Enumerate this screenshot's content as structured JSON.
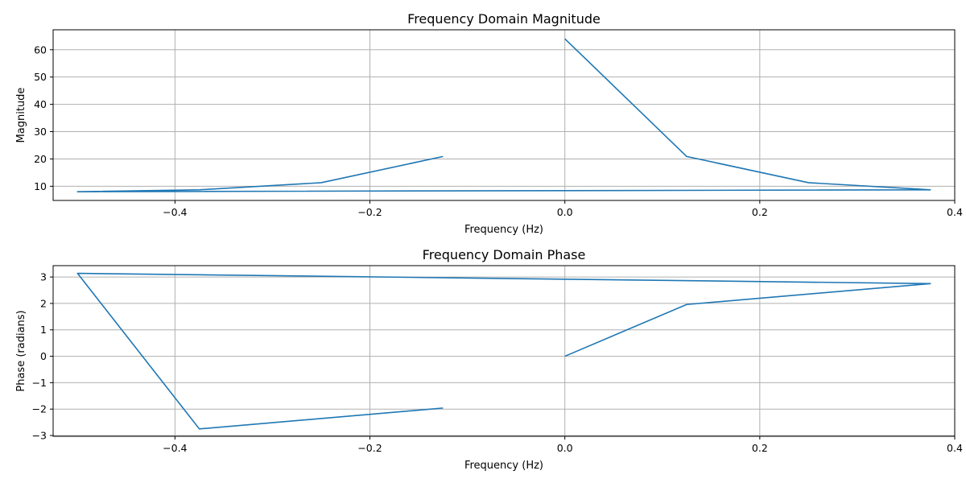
{
  "chart_data": [
    {
      "type": "line",
      "title": "Frequency Domain Magnitude",
      "xlabel": "Frequency (Hz)",
      "ylabel": "Magnitude",
      "xlim": [
        -0.525,
        0.4
      ],
      "ylim": [
        4.8,
        67.3
      ],
      "xticks": [
        -0.4,
        -0.2,
        0.0,
        0.2,
        0.4
      ],
      "xtick_labels": [
        "−0.4",
        "−0.2",
        "0.0",
        "0.2",
        "0.4"
      ],
      "yticks": [
        10,
        20,
        30,
        40,
        50,
        60
      ],
      "ytick_labels": [
        "10",
        "20",
        "30",
        "40",
        "50",
        "60"
      ],
      "grid": true,
      "series": [
        {
          "color": "#1f77b4",
          "x": [
            0.0,
            0.125,
            0.25,
            0.375,
            -0.5,
            -0.375,
            -0.25,
            -0.125
          ],
          "y": [
            64.0,
            20.9,
            11.3,
            8.7,
            8.0,
            8.7,
            11.3,
            20.9
          ]
        }
      ]
    },
    {
      "type": "line",
      "title": "Frequency Domain Phase",
      "xlabel": "Frequency (Hz)",
      "ylabel": "Phase (radians)",
      "xlim": [
        -0.525,
        0.4
      ],
      "ylim": [
        -3.03,
        3.43
      ],
      "xticks": [
        -0.4,
        -0.2,
        0.0,
        0.2,
        0.4
      ],
      "xtick_labels": [
        "−0.4",
        "−0.2",
        "0.0",
        "0.2",
        "0.4"
      ],
      "yticks": [
        -3,
        -2,
        -1,
        0,
        1,
        2,
        3
      ],
      "ytick_labels": [
        "−3",
        "−2",
        "−1",
        "0",
        "1",
        "2",
        "3"
      ],
      "grid": true,
      "series": [
        {
          "color": "#1f77b4",
          "x": [
            0.0,
            0.125,
            0.375,
            -0.5,
            -0.375,
            -0.125
          ],
          "y": [
            0.0,
            1.96,
            2.75,
            3.14,
            -2.75,
            -1.96
          ]
        }
      ]
    }
  ]
}
